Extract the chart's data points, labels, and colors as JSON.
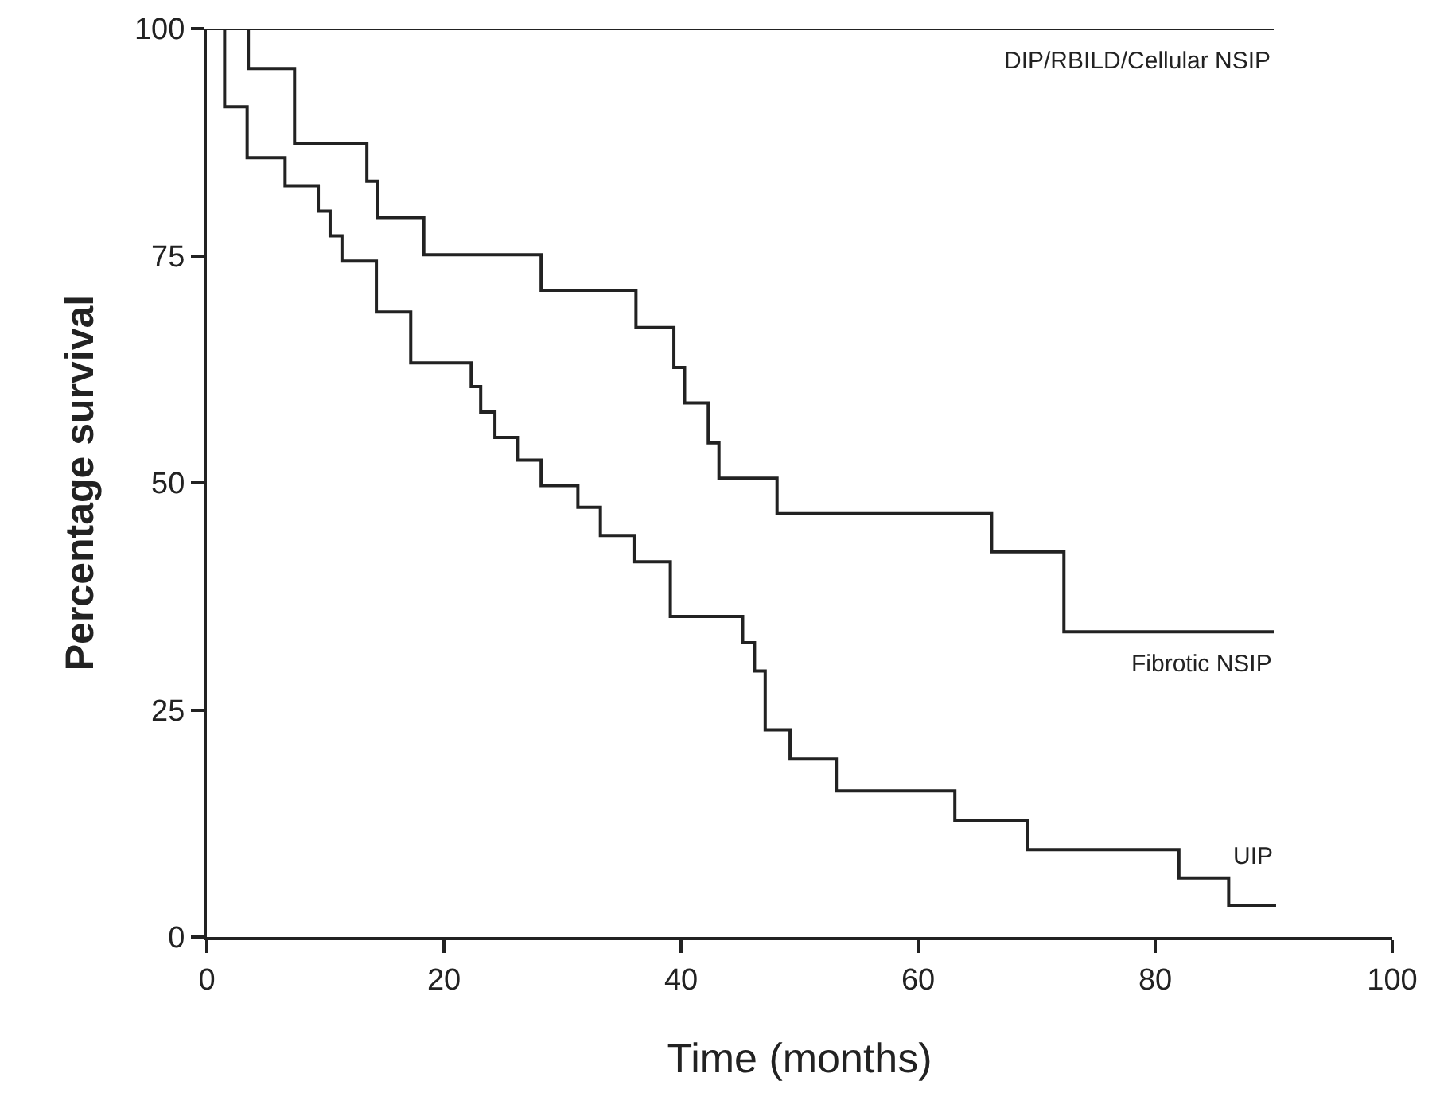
{
  "chart_data": {
    "type": "step",
    "xlabel": "Time (months)",
    "ylabel": "Percentage survival",
    "xlim": [
      0,
      100
    ],
    "xticks": [
      0,
      20,
      40,
      60,
      80,
      100
    ],
    "ylim": [
      0,
      100
    ],
    "yticks": [
      0,
      25,
      50,
      75,
      100
    ],
    "grid": false,
    "legend": false,
    "marker": "none",
    "line_style": "solid",
    "series": [
      {
        "name": "DIP/RBILD/Cellular NSIP",
        "color": "#222222",
        "x": [
          0,
          90
        ],
        "values": [
          100,
          100
        ]
      },
      {
        "name": "Fibrotic NSIP",
        "color": "#222222",
        "x": [
          0,
          3.5,
          7.4,
          13.5,
          14.4,
          18.3,
          28.2,
          36.2,
          39.4,
          40.3,
          42.3,
          43.2,
          48.1,
          66.2,
          72.3,
          90
        ],
        "values": [
          100,
          95.6,
          87.4,
          83.2,
          79.2,
          75.1,
          71.2,
          67.1,
          62.7,
          58.8,
          54.4,
          50.5,
          46.6,
          42.4,
          33.6,
          33.6
        ]
      },
      {
        "name": "UIP",
        "color": "#222222",
        "x": [
          0,
          1.5,
          3.4,
          6.6,
          9.4,
          10.4,
          11.4,
          14.3,
          17.2,
          22.3,
          23.1,
          24.3,
          26.2,
          28.2,
          31.3,
          33.2,
          36.1,
          39.1,
          45.2,
          46.2,
          47.1,
          49.2,
          53.1,
          63.1,
          69.2,
          82.0,
          86.2,
          90.2
        ],
        "values": [
          100,
          91.4,
          85.8,
          82.7,
          79.9,
          77.2,
          74.4,
          68.8,
          63.2,
          60.6,
          57.8,
          55.0,
          52.5,
          49.7,
          47.3,
          44.2,
          41.3,
          35.3,
          32.4,
          29.3,
          22.8,
          19.6,
          16.1,
          12.8,
          9.6,
          6.5,
          3.5,
          3.5
        ]
      }
    ]
  }
}
